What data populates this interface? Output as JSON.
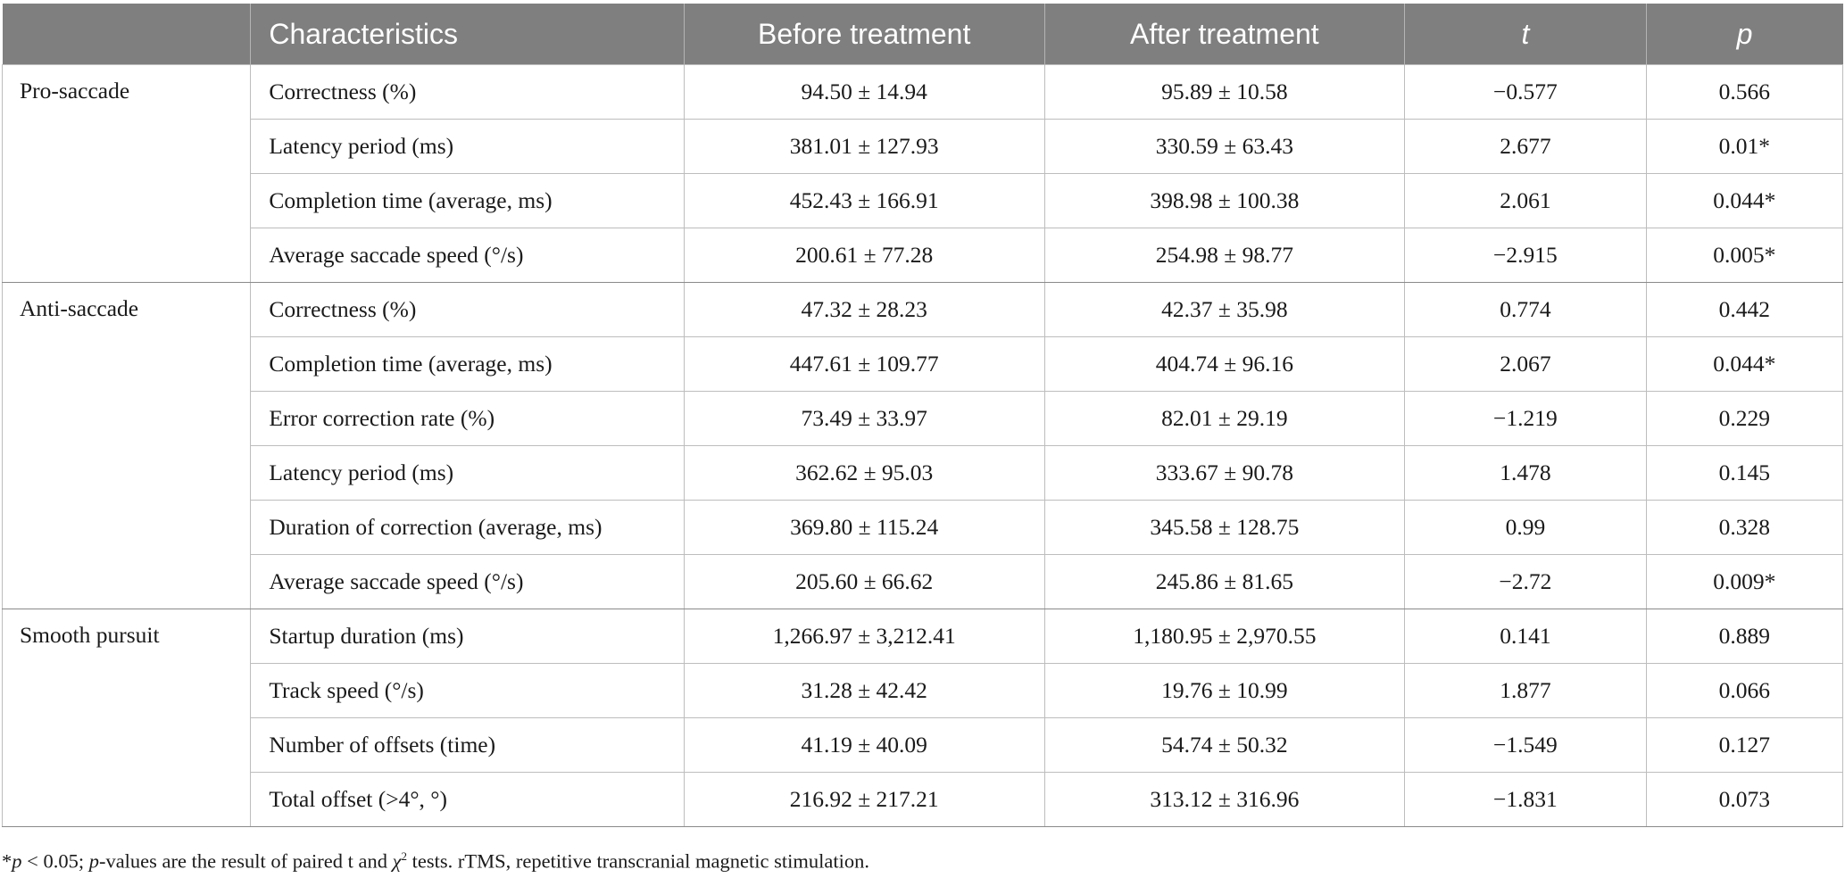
{
  "header": [
    "",
    "Characteristics",
    "Before treatment",
    "After treatment",
    "t",
    "p"
  ],
  "groups": [
    {
      "name": "Pro-saccade",
      "rows": [
        {
          "characteristic": "Correctness (%)",
          "before": "94.50 ± 14.94",
          "after": "95.89 ± 10.58",
          "t": "−0.577",
          "p": "0.566"
        },
        {
          "characteristic": "Latency period (ms)",
          "before": "381.01 ± 127.93",
          "after": "330.59 ± 63.43",
          "t": "2.677",
          "p": "0.01*"
        },
        {
          "characteristic": "Completion time (average, ms)",
          "before": "452.43 ± 166.91",
          "after": "398.98 ± 100.38",
          "t": "2.061",
          "p": "0.044*"
        },
        {
          "characteristic": "Average saccade speed (°/s)",
          "before": "200.61 ± 77.28",
          "after": "254.98 ± 98.77",
          "t": "−2.915",
          "p": "0.005*"
        }
      ]
    },
    {
      "name": "Anti-saccade",
      "rows": [
        {
          "characteristic": "Correctness (%)",
          "before": "47.32 ± 28.23",
          "after": "42.37 ± 35.98",
          "t": "0.774",
          "p": "0.442"
        },
        {
          "characteristic": "Completion time (average, ms)",
          "before": "447.61 ± 109.77",
          "after": "404.74 ± 96.16",
          "t": "2.067",
          "p": "0.044*"
        },
        {
          "characteristic": "Error correction rate (%)",
          "before": "73.49 ± 33.97",
          "after": "82.01 ± 29.19",
          "t": "−1.219",
          "p": "0.229"
        },
        {
          "characteristic": "Latency period (ms)",
          "before": "362.62 ± 95.03",
          "after": "333.67 ± 90.78",
          "t": "1.478",
          "p": "0.145"
        },
        {
          "characteristic": "Duration of correction (average, ms)",
          "before": "369.80 ± 115.24",
          "after": "345.58 ± 128.75",
          "t": "0.99",
          "p": "0.328"
        },
        {
          "characteristic": "Average saccade speed (°/s)",
          "before": "205.60 ± 66.62",
          "after": "245.86 ± 81.65",
          "t": "−2.72",
          "p": "0.009*"
        }
      ]
    },
    {
      "name": "Smooth pursuit",
      "rows": [
        {
          "characteristic": "Startup duration (ms)",
          "before": "1,266.97 ± 3,212.41",
          "after": "1,180.95 ± 2,970.55",
          "t": "0.141",
          "p": "0.889"
        },
        {
          "characteristic": "Track speed (°/s)",
          "before": "31.28 ± 42.42",
          "after": "19.76 ± 10.99",
          "t": "1.877",
          "p": "0.066"
        },
        {
          "characteristic": "Number of offsets (time)",
          "before": "41.19 ± 40.09",
          "after": "54.74 ± 50.32",
          "t": "−1.549",
          "p": "0.127"
        },
        {
          "characteristic": "Total offset (>4°, °)",
          "before": "216.92 ± 217.21",
          "after": "313.12 ± 316.96",
          "t": "−1.831",
          "p": "0.073"
        }
      ]
    }
  ],
  "footnote": {
    "star": "*",
    "p_symbol": "p",
    "lt": " < 0.05; ",
    "p_values_word": "p",
    "middle": "-values are the result of paired t and ",
    "chi": "χ",
    "chi_sup": "2",
    "end": " tests. rTMS, repetitive transcranial magnetic stimulation."
  }
}
